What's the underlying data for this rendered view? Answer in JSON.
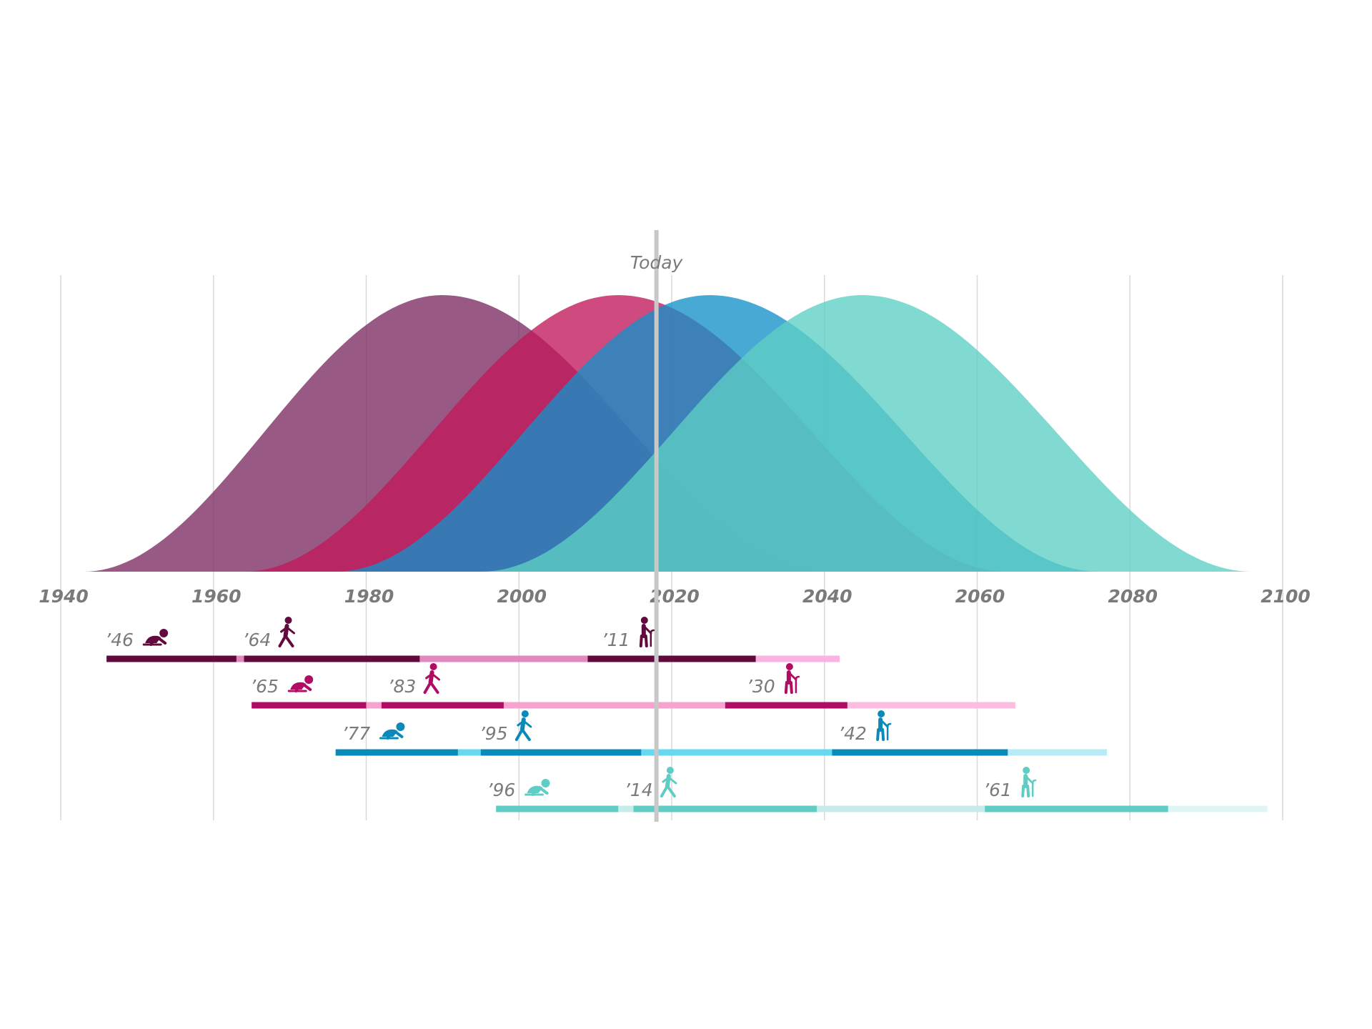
{
  "chart_data": {
    "type": "area",
    "title": "",
    "xlabel": "",
    "ylabel": "",
    "xlim": [
      1940,
      2100
    ],
    "x_ticks": [
      "1940",
      "1960",
      "1980",
      "2000",
      "2020",
      "2040",
      "2060",
      "2080",
      "2100"
    ],
    "grid": "vertical",
    "today": {
      "label": "Today",
      "year": 2018
    },
    "series": [
      {
        "color": "#7b2a62",
        "curve": {
          "start": 1943,
          "peak": 1990,
          "end": 2040
        },
        "lifespan": {
          "start": 1946,
          "end": 2042
        },
        "stages": [
          {
            "label": "’46",
            "year": 1946,
            "icon": "baby-crawling-icon",
            "start": 1946,
            "end": 1963
          },
          {
            "label": "’64",
            "year": 1964,
            "icon": "person-walking-icon",
            "start": 1964,
            "end": 1987
          },
          {
            "label": "’11",
            "year": 2011,
            "icon": "elderly-person-cane-icon",
            "start": 2009,
            "end": 2031
          }
        ],
        "colors": {
          "dark": "#62093e",
          "mid": "#e089be",
          "light": "#fbb3e4"
        }
      },
      {
        "color": "#c2185b",
        "curve": {
          "start": 1964,
          "peak": 2013,
          "end": 2064
        },
        "lifespan": {
          "start": 1965,
          "end": 2065
        },
        "stages": [
          {
            "label": "’65",
            "year": 1965,
            "icon": "baby-crawling-icon",
            "start": 1965,
            "end": 1980
          },
          {
            "label": "’83",
            "year": 1983,
            "icon": "person-walking-icon",
            "start": 1982,
            "end": 1998
          },
          {
            "label": "’30",
            "year": 2030,
            "icon": "elderly-person-cane-icon",
            "start": 2027,
            "end": 2043
          }
        ],
        "colors": {
          "dark": "#b00c63",
          "mid": "#f7a3cf",
          "light": "#fdbde0"
        }
      },
      {
        "color": "#1591c9",
        "curve": {
          "start": 1976,
          "peak": 2025,
          "end": 2076
        },
        "lifespan": {
          "start": 1976,
          "end": 2077
        },
        "stages": [
          {
            "label": "’77",
            "year": 1977,
            "icon": "baby-crawling-icon",
            "start": 1976,
            "end": 1992
          },
          {
            "label": "’95",
            "year": 1995,
            "icon": "person-walking-icon",
            "start": 1995,
            "end": 2016
          },
          {
            "label": "’42",
            "year": 2042,
            "icon": "elderly-person-cane-icon",
            "start": 2041,
            "end": 2064
          }
        ],
        "colors": {
          "dark": "#0a8ab8",
          "mid": "#66d8f0",
          "light": "#b5ecf8"
        }
      },
      {
        "color": "#5ecfc4",
        "curve": {
          "start": 1995,
          "peak": 2045,
          "end": 2096
        },
        "lifespan": {
          "start": 1997,
          "end": 2098
        },
        "stages": [
          {
            "label": "’96",
            "year": 1996,
            "icon": "baby-crawling-icon",
            "start": 1997,
            "end": 2013
          },
          {
            "label": "’14",
            "year": 2014,
            "icon": "person-walking-icon",
            "start": 2015,
            "end": 2039
          },
          {
            "label": "’61",
            "year": 2061,
            "icon": "elderly-person-cane-icon",
            "start": 2061,
            "end": 2085
          }
        ],
        "colors": {
          "dark": "#60cdc4",
          "mid": "#c7ecea",
          "light": "#dff5f4"
        }
      }
    ]
  }
}
